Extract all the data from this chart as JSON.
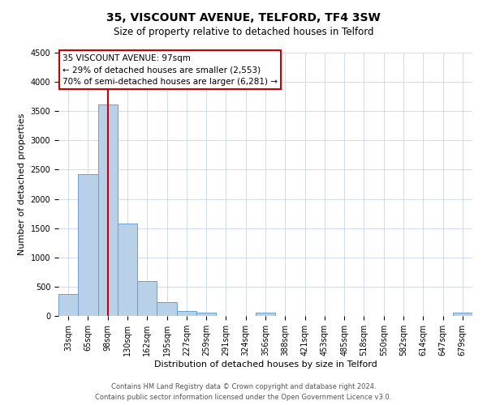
{
  "title": "35, VISCOUNT AVENUE, TELFORD, TF4 3SW",
  "subtitle": "Size of property relative to detached houses in Telford",
  "xlabel": "Distribution of detached houses by size in Telford",
  "ylabel": "Number of detached properties",
  "bin_labels": [
    "33sqm",
    "65sqm",
    "98sqm",
    "130sqm",
    "162sqm",
    "195sqm",
    "227sqm",
    "259sqm",
    "291sqm",
    "324sqm",
    "356sqm",
    "388sqm",
    "421sqm",
    "453sqm",
    "485sqm",
    "518sqm",
    "550sqm",
    "582sqm",
    "614sqm",
    "647sqm",
    "679sqm"
  ],
  "bar_values": [
    380,
    2420,
    3620,
    1580,
    600,
    240,
    90,
    50,
    0,
    0,
    50,
    0,
    0,
    0,
    0,
    0,
    0,
    0,
    0,
    0,
    50
  ],
  "bar_color": "#b8d0e8",
  "bar_edge_color": "#6a9fc8",
  "vline_x_idx": 2,
  "vline_color": "#cc0000",
  "annotation_line1": "35 VISCOUNT AVENUE: 97sqm",
  "annotation_line2": "← 29% of detached houses are smaller (2,553)",
  "annotation_line3": "70% of semi-detached houses are larger (6,281) →",
  "annotation_box_color": "#ffffff",
  "annotation_box_edge_color": "#cc0000",
  "ylim": [
    0,
    4500
  ],
  "yticks": [
    0,
    500,
    1000,
    1500,
    2000,
    2500,
    3000,
    3500,
    4000,
    4500
  ],
  "footer_line1": "Contains HM Land Registry data © Crown copyright and database right 2024.",
  "footer_line2": "Contains public sector information licensed under the Open Government Licence v3.0.",
  "bg_color": "#ffffff",
  "grid_color": "#ccd6e8",
  "title_fontsize": 10,
  "subtitle_fontsize": 8.5,
  "xlabel_fontsize": 8,
  "ylabel_fontsize": 8,
  "tick_fontsize": 7,
  "footer_fontsize": 6
}
